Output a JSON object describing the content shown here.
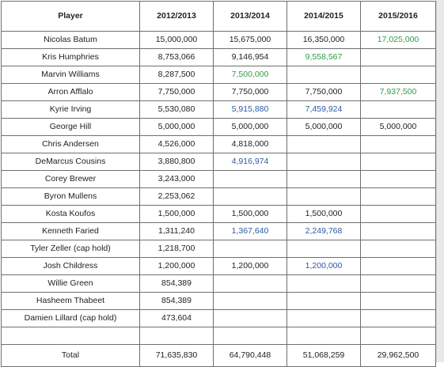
{
  "colors": {
    "green": "#2f9e44",
    "blue": "#2c5aa0",
    "text": "#222222",
    "border": "#6f6f6f"
  },
  "table": {
    "headers": [
      "Player",
      "2012/2013",
      "2013/2014",
      "2014/2015",
      "2015/2016"
    ],
    "rows": [
      {
        "player": "Nicolas Batum",
        "cells": [
          {
            "v": "15,000,000",
            "c": "black"
          },
          {
            "v": "15,675,000",
            "c": "black"
          },
          {
            "v": "16,350,000",
            "c": "black"
          },
          {
            "v": "17,025,000",
            "c": "green"
          }
        ]
      },
      {
        "player": "Kris Humphries",
        "cells": [
          {
            "v": "8,753,066",
            "c": "black"
          },
          {
            "v": "9,146,954",
            "c": "black"
          },
          {
            "v": "9,558,567",
            "c": "green"
          },
          {
            "v": "",
            "c": "black"
          }
        ]
      },
      {
        "player": "Marvin Williams",
        "cells": [
          {
            "v": "8,287,500",
            "c": "black"
          },
          {
            "v": "7,500,000",
            "c": "green"
          },
          {
            "v": "",
            "c": "black"
          },
          {
            "v": "",
            "c": "black"
          }
        ]
      },
      {
        "player": "Arron Afflalo",
        "cells": [
          {
            "v": "7,750,000",
            "c": "black"
          },
          {
            "v": "7,750,000",
            "c": "black"
          },
          {
            "v": "7,750,000",
            "c": "black"
          },
          {
            "v": "7,937,500",
            "c": "green"
          }
        ]
      },
      {
        "player": "Kyrie Irving",
        "cells": [
          {
            "v": "5,530,080",
            "c": "black"
          },
          {
            "v": "5,915,880",
            "c": "blue"
          },
          {
            "v": "7,459,924",
            "c": "blue"
          },
          {
            "v": "",
            "c": "black"
          }
        ]
      },
      {
        "player": "George Hill",
        "cells": [
          {
            "v": "5,000,000",
            "c": "black"
          },
          {
            "v": "5,000,000",
            "c": "black"
          },
          {
            "v": "5,000,000",
            "c": "black"
          },
          {
            "v": "5,000,000",
            "c": "black"
          }
        ]
      },
      {
        "player": "Chris Andersen",
        "cells": [
          {
            "v": "4,526,000",
            "c": "black"
          },
          {
            "v": "4,818,000",
            "c": "black"
          },
          {
            "v": "",
            "c": "black"
          },
          {
            "v": "",
            "c": "black"
          }
        ]
      },
      {
        "player": "DeMarcus Cousins",
        "cells": [
          {
            "v": "3,880,800",
            "c": "black"
          },
          {
            "v": "4,916,974",
            "c": "blue"
          },
          {
            "v": "",
            "c": "black"
          },
          {
            "v": "",
            "c": "black"
          }
        ]
      },
      {
        "player": "Corey Brewer",
        "cells": [
          {
            "v": "3,243,000",
            "c": "black"
          },
          {
            "v": "",
            "c": "black"
          },
          {
            "v": "",
            "c": "black"
          },
          {
            "v": "",
            "c": "black"
          }
        ]
      },
      {
        "player": "Byron Mullens",
        "cells": [
          {
            "v": "2,253,062",
            "c": "black"
          },
          {
            "v": "",
            "c": "black"
          },
          {
            "v": "",
            "c": "black"
          },
          {
            "v": "",
            "c": "black"
          }
        ]
      },
      {
        "player": "Kosta Koufos",
        "cells": [
          {
            "v": "1,500,000",
            "c": "black"
          },
          {
            "v": "1,500,000",
            "c": "black"
          },
          {
            "v": "1,500,000",
            "c": "black"
          },
          {
            "v": "",
            "c": "black"
          }
        ]
      },
      {
        "player": "Kenneth Faried",
        "cells": [
          {
            "v": "1,311,240",
            "c": "black"
          },
          {
            "v": "1,367,640",
            "c": "blue"
          },
          {
            "v": "2,249,768",
            "c": "blue"
          },
          {
            "v": "",
            "c": "black"
          }
        ]
      },
      {
        "player": "Tyler Zeller (cap hold)",
        "cells": [
          {
            "v": "1,218,700",
            "c": "black"
          },
          {
            "v": "",
            "c": "black"
          },
          {
            "v": "",
            "c": "black"
          },
          {
            "v": "",
            "c": "black"
          }
        ]
      },
      {
        "player": "Josh Childress",
        "cells": [
          {
            "v": "1,200,000",
            "c": "black"
          },
          {
            "v": "1,200,000",
            "c": "black"
          },
          {
            "v": "1,200,000",
            "c": "blue"
          },
          {
            "v": "",
            "c": "black"
          }
        ]
      },
      {
        "player": "Willie Green",
        "cells": [
          {
            "v": "854,389",
            "c": "black"
          },
          {
            "v": "",
            "c": "black"
          },
          {
            "v": "",
            "c": "black"
          },
          {
            "v": "",
            "c": "black"
          }
        ]
      },
      {
        "player": "Hasheem Thabeet",
        "cells": [
          {
            "v": "854,389",
            "c": "black"
          },
          {
            "v": "",
            "c": "black"
          },
          {
            "v": "",
            "c": "black"
          },
          {
            "v": "",
            "c": "black"
          }
        ]
      },
      {
        "player": "Damien Lillard (cap hold)",
        "cells": [
          {
            "v": "473,604",
            "c": "black"
          },
          {
            "v": "",
            "c": "black"
          },
          {
            "v": "",
            "c": "black"
          },
          {
            "v": "",
            "c": "black"
          }
        ]
      }
    ],
    "total": {
      "label": "Total",
      "values": [
        "71,635,830",
        "64,790,448",
        "51,068,259",
        "29,962,500"
      ]
    }
  }
}
